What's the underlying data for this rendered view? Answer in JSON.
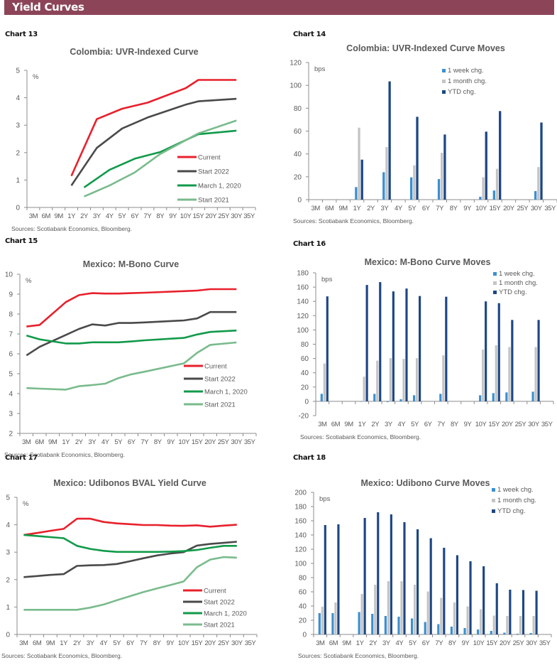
{
  "page": {
    "section_title": "Yield Curves",
    "source_note": "Sources: Scotiabank Economics, Bloomberg."
  },
  "colors": {
    "banner": "#8c4558",
    "current": "#e8202c",
    "start2022": "#4a4a4a",
    "march2020": "#119a4a",
    "start2021": "#79bb8c",
    "week": "#3b8fd0",
    "month": "#c4c4c4",
    "ytd": "#1d4785"
  },
  "chart_data": [
    {
      "id": "chart13",
      "label": "Chart 13",
      "type": "line",
      "title": "Colombia: UVR-Indexed Curve",
      "ylabel": "%",
      "ylim": [
        0,
        5
      ],
      "yticks": [
        0,
        1,
        2,
        3,
        4,
        5
      ],
      "categories": [
        "3M",
        "6M",
        "9M",
        "1Y",
        "2Y",
        "3Y",
        "4Y",
        "5Y",
        "6Y",
        "7Y",
        "8Y",
        "9Y",
        "10Y",
        "15Y",
        "20Y",
        "25Y",
        "30Y",
        "35Y"
      ],
      "legend": "bottom-right",
      "series": [
        {
          "name": "Current",
          "color_key": "current",
          "values": [
            null,
            null,
            null,
            1.15,
            null,
            3.22,
            null,
            3.6,
            null,
            3.82,
            null,
            null,
            4.35,
            4.65,
            null,
            null,
            4.65,
            null
          ]
        },
        {
          "name": "Start 2022",
          "color_key": "start2022",
          "values": [
            null,
            null,
            null,
            0.8,
            null,
            2.17,
            null,
            2.88,
            null,
            3.28,
            null,
            null,
            3.75,
            3.87,
            null,
            null,
            3.96,
            null
          ]
        },
        {
          "name": "March 1, 2020",
          "color_key": "march2020",
          "values": [
            null,
            null,
            null,
            null,
            0.73,
            null,
            1.37,
            null,
            1.78,
            null,
            2.02,
            null,
            null,
            2.67,
            null,
            null,
            2.8,
            null
          ]
        },
        {
          "name": "Start 2021",
          "color_key": "start2021",
          "values": [
            null,
            null,
            null,
            null,
            0.4,
            null,
            0.8,
            null,
            1.28,
            null,
            1.95,
            null,
            null,
            2.7,
            null,
            null,
            3.17,
            null
          ]
        }
      ],
      "source": "Sources: Scotiabank Economics, Bloomberg."
    },
    {
      "id": "chart14",
      "label": "Chart 14",
      "type": "bar",
      "title": "Colombia: UVR-Indexed Curve Moves",
      "ylabel": "bps",
      "ylim": [
        0,
        120
      ],
      "yticks": [
        0,
        20,
        40,
        60,
        80,
        100,
        120
      ],
      "categories": [
        "3M",
        "6M",
        "9M",
        "1Y",
        "2Y",
        "3Y",
        "4Y",
        "5Y",
        "6Y",
        "7Y",
        "8Y",
        "9Y",
        "10Y",
        "15Y",
        "20Y",
        "25Y",
        "30Y",
        "35Y"
      ],
      "legend": "top-center",
      "series": [
        {
          "name": "1 week chg.",
          "color_key": "week",
          "values": [
            null,
            null,
            null,
            11,
            null,
            24,
            null,
            19.5,
            null,
            18,
            null,
            null,
            2.5,
            8,
            null,
            null,
            7.5,
            null
          ]
        },
        {
          "name": "1 month chg.",
          "color_key": "month",
          "values": [
            null,
            null,
            null,
            63,
            null,
            46,
            null,
            30,
            null,
            41,
            null,
            null,
            19.5,
            27,
            null,
            null,
            28.5,
            null
          ]
        },
        {
          "name": "YTD chg.",
          "color_key": "ytd",
          "values": [
            null,
            null,
            null,
            35,
            null,
            103.5,
            null,
            72.5,
            null,
            57,
            null,
            null,
            59.5,
            77.5,
            null,
            null,
            67.5,
            null
          ]
        }
      ],
      "source": "Sources: Scotiabank Economics, Bloomberg."
    },
    {
      "id": "chart15",
      "label": "Chart 15",
      "type": "line",
      "title": "Mexico: M-Bono Curve",
      "ylabel": "%",
      "ylim": [
        2,
        10
      ],
      "yticks": [
        2,
        3,
        4,
        5,
        6,
        7,
        8,
        9,
        10
      ],
      "categories": [
        "3M",
        "6M",
        "9M",
        "1Y",
        "2Y",
        "3Y",
        "4Y",
        "5Y",
        "6Y",
        "7Y",
        "8Y",
        "9Y",
        "10Y",
        "15Y",
        "20Y",
        "25Y",
        "30Y",
        "35Y"
      ],
      "legend": "bottom-right",
      "series": [
        {
          "name": "Current",
          "color_key": "current",
          "values": [
            7.37,
            7.45,
            null,
            8.6,
            8.95,
            9.05,
            9.03,
            9.03,
            9.05,
            9.07,
            null,
            null,
            9.15,
            9.18,
            9.25,
            null,
            9.25,
            null
          ]
        },
        {
          "name": "Start 2022",
          "color_key": "start2022",
          "values": [
            5.92,
            6.35,
            null,
            6.95,
            7.25,
            7.48,
            7.42,
            7.55,
            7.55,
            7.58,
            null,
            null,
            7.68,
            7.78,
            8.1,
            null,
            8.1,
            null
          ]
        },
        {
          "name": "March 1, 2020",
          "color_key": "march2020",
          "values": [
            6.92,
            6.73,
            null,
            6.52,
            6.52,
            6.58,
            6.58,
            6.58,
            6.62,
            6.68,
            null,
            null,
            6.8,
            6.97,
            7.1,
            null,
            7.17,
            null
          ]
        },
        {
          "name": "Start 2021",
          "color_key": "start2021",
          "values": [
            4.28,
            4.25,
            null,
            4.2,
            4.37,
            4.43,
            4.5,
            4.78,
            4.97,
            5.1,
            null,
            null,
            5.52,
            6.05,
            6.45,
            null,
            6.57,
            null
          ]
        }
      ],
      "source": "Sources: Scotiabank Economics, Bloomberg."
    },
    {
      "id": "chart16",
      "label": "Chart 16",
      "type": "bar",
      "title": "Mexico: M-Bono Curve Moves",
      "ylabel": "bps",
      "ylim": [
        -20,
        180
      ],
      "yticks": [
        -20,
        0,
        20,
        40,
        60,
        80,
        100,
        120,
        140,
        160,
        180
      ],
      "categories": [
        "3M",
        "6M",
        "9M",
        "1Y",
        "2Y",
        "3Y",
        "4Y",
        "5Y",
        "6Y",
        "7Y",
        "8Y",
        "9Y",
        "10Y",
        "15Y",
        "20Y",
        "25Y",
        "30Y",
        "35Y"
      ],
      "legend": "top-right",
      "series": [
        {
          "name": "1 week chg.",
          "color_key": "week",
          "values": [
            10.5,
            null,
            null,
            0,
            10.5,
            -1,
            3,
            8.5,
            null,
            10.5,
            null,
            null,
            8.5,
            11.5,
            12.5,
            null,
            13.5,
            null
          ]
        },
        {
          "name": "1 month chg.",
          "color_key": "month",
          "values": [
            53,
            null,
            null,
            34.5,
            57,
            60.5,
            59.5,
            60.5,
            null,
            64.5,
            null,
            null,
            72.5,
            78.5,
            76,
            null,
            76,
            null
          ]
        },
        {
          "name": "YTD chg.",
          "color_key": "ytd",
          "values": [
            147,
            null,
            null,
            163,
            167,
            154,
            158,
            147.5,
            null,
            146.5,
            null,
            null,
            140,
            137.5,
            114,
            null,
            114,
            null
          ]
        }
      ],
      "source": "Sources: Scotiabank Economics, Bloomberg."
    },
    {
      "id": "chart17",
      "label": "Chart 17",
      "type": "line",
      "title": "Mexico: Udibonos BVAL Yield Curve",
      "ylabel": "%",
      "ylim": [
        0,
        5
      ],
      "yticks": [
        0,
        1,
        2,
        3,
        4,
        5
      ],
      "categories": [
        "3M",
        "6M",
        "9M",
        "1Y",
        "2Y",
        "3Y",
        "4Y",
        "5Y",
        "6Y",
        "7Y",
        "8Y",
        "9Y",
        "10Y",
        "15Y",
        "20Y",
        "25Y",
        "30Y",
        "35Y"
      ],
      "legend": "bottom-right",
      "series": [
        {
          "name": "Current",
          "color_key": "current",
          "values": [
            3.63,
            3.7,
            3.78,
            3.85,
            4.22,
            4.22,
            4.1,
            4.05,
            4.02,
            3.99,
            3.99,
            3.97,
            3.96,
            3.98,
            3.93,
            3.97,
            4.0,
            null
          ]
        },
        {
          "name": "Start 2022",
          "color_key": "start2022",
          "values": [
            2.09,
            2.13,
            2.17,
            2.2,
            2.5,
            2.52,
            2.53,
            2.57,
            2.67,
            2.78,
            2.88,
            2.95,
            3.0,
            3.24,
            3.3,
            3.34,
            3.38,
            null
          ]
        },
        {
          "name": "March 1, 2020",
          "color_key": "march2020",
          "values": [
            3.63,
            3.59,
            3.55,
            3.51,
            3.23,
            3.12,
            3.05,
            3.01,
            3.01,
            3.01,
            3.01,
            3.02,
            3.04,
            3.08,
            3.16,
            3.23,
            3.23,
            null
          ]
        },
        {
          "name": "Start 2021",
          "color_key": "start2021",
          "values": [
            0.9,
            0.9,
            0.9,
            0.9,
            0.9,
            0.98,
            1.09,
            1.25,
            1.4,
            1.55,
            1.68,
            1.8,
            1.93,
            2.45,
            2.73,
            2.82,
            2.8,
            null
          ]
        }
      ],
      "source": "Sources: Scotiabank Economics, Bloomberg."
    },
    {
      "id": "chart18",
      "label": "Chart 18",
      "type": "bar",
      "title": "Mexico: Udibono Curve Moves",
      "ylabel": "bps",
      "ylim": [
        0,
        200
      ],
      "yticks": [
        0,
        20,
        40,
        60,
        80,
        100,
        120,
        140,
        160,
        180,
        200
      ],
      "categories": [
        "3M",
        "6M",
        "9M",
        "1Y",
        "2Y",
        "3Y",
        "4Y",
        "5Y",
        "6Y",
        "7Y",
        "8Y",
        "9Y",
        "10Y",
        "15Y",
        "20Y",
        "25Y",
        "30Y",
        "35Y"
      ],
      "legend": "top-right",
      "series": [
        {
          "name": "1 week chg.",
          "color_key": "week",
          "values": [
            30,
            30,
            null,
            31.5,
            29,
            26,
            25,
            22.5,
            17.5,
            14.5,
            11,
            9,
            7,
            5,
            2.5,
            1,
            2,
            null
          ]
        },
        {
          "name": "1 month chg.",
          "color_key": "month",
          "values": [
            39,
            45,
            null,
            57,
            70,
            75,
            75,
            70,
            60.5,
            51.5,
            45,
            39.5,
            35.5,
            26.5,
            26,
            26,
            26,
            null
          ]
        },
        {
          "name": "YTD chg.",
          "color_key": "ytd",
          "values": [
            154,
            155,
            null,
            164,
            172,
            169,
            158,
            148,
            135.5,
            122,
            111.5,
            103,
            96,
            72,
            63,
            62.5,
            61.5,
            null
          ]
        }
      ],
      "source": "Sources: Scotiabank Economics, Bloomberg."
    }
  ]
}
